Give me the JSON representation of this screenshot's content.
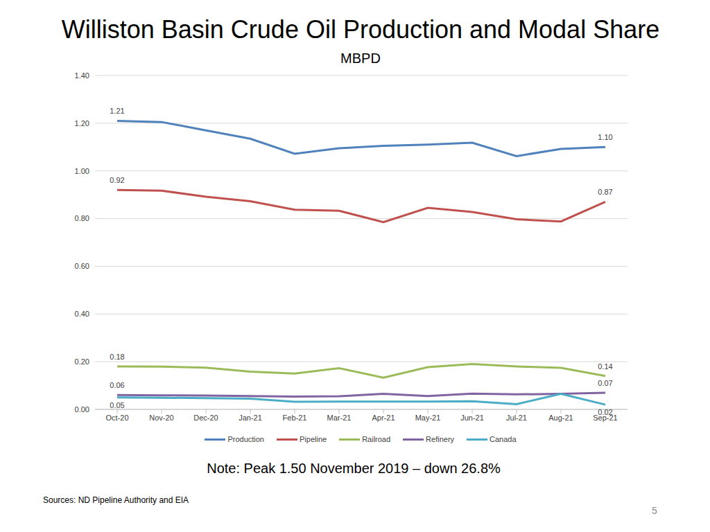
{
  "chart_data": {
    "type": "line",
    "title": "Williston Basin Crude Oil Production and Modal Share",
    "subtitle": "MBPD",
    "categories": [
      "Oct-20",
      "Nov-20",
      "Dec-20",
      "Jan-21",
      "Feb-21",
      "Mar-21",
      "Apr-21",
      "May-21",
      "Jun-21",
      "Jul-21",
      "Aug-21",
      "Sep-21"
    ],
    "series": [
      {
        "name": "Production",
        "color": "#4f81bd",
        "values": [
          1.21,
          1.205,
          1.17,
          1.135,
          1.072,
          1.095,
          1.105,
          1.11,
          1.118,
          1.062,
          1.092,
          1.1
        ],
        "value_labels": [
          "1.21",
          null,
          null,
          null,
          null,
          null,
          null,
          null,
          null,
          null,
          null,
          "1.10"
        ]
      },
      {
        "name": "Pipeline",
        "color": "#c0504d",
        "values": [
          0.92,
          0.917,
          0.892,
          0.873,
          0.837,
          0.833,
          0.785,
          0.845,
          0.828,
          0.797,
          0.788,
          0.87
        ],
        "value_labels": [
          "0.92",
          null,
          null,
          null,
          null,
          null,
          null,
          null,
          null,
          null,
          null,
          "0.87"
        ]
      },
      {
        "name": "Railroad",
        "color": "#9bbb59",
        "values": [
          0.18,
          0.179,
          0.175,
          0.158,
          0.15,
          0.173,
          0.133,
          0.177,
          0.19,
          0.18,
          0.174,
          0.14
        ],
        "value_labels": [
          "0.18",
          null,
          null,
          null,
          null,
          null,
          null,
          null,
          null,
          null,
          null,
          "0.14"
        ]
      },
      {
        "name": "Refinery",
        "color": "#8064a2",
        "values": [
          0.06,
          0.059,
          0.058,
          0.056,
          0.054,
          0.055,
          0.065,
          0.056,
          0.066,
          0.063,
          0.065,
          0.07
        ],
        "value_labels": [
          "0.06",
          null,
          null,
          null,
          null,
          null,
          null,
          null,
          null,
          null,
          null,
          "0.07"
        ]
      },
      {
        "name": "Canada",
        "color": "#4bacc6",
        "values": [
          0.05,
          0.049,
          0.047,
          0.045,
          0.032,
          0.033,
          0.033,
          0.033,
          0.034,
          0.022,
          0.065,
          0.02
        ],
        "value_labels": [
          "0.05",
          null,
          null,
          null,
          null,
          null,
          null,
          null,
          null,
          null,
          null,
          "0.02"
        ]
      }
    ],
    "ylim": [
      0,
      1.4
    ],
    "yticks": [
      {
        "value": 0,
        "label": "0.00"
      },
      {
        "value": 0.2,
        "label": "0.20"
      },
      {
        "value": 0.4,
        "label": "0.40"
      },
      {
        "value": 0.6,
        "label": "0.60"
      },
      {
        "value": 0.8,
        "label": "0.80"
      },
      {
        "value": 1.0,
        "label": "1.00"
      },
      {
        "value": 1.2,
        "label": "1.20"
      },
      {
        "value": 1.4,
        "label": "1.40"
      }
    ],
    "grid": true,
    "legend": "bottom",
    "data_labels": true,
    "annotations": [
      "Note: Peak 1.50 November 2019 – down 26.8%",
      "Sources: ND Pipeline Authority and EIA",
      "5"
    ]
  }
}
